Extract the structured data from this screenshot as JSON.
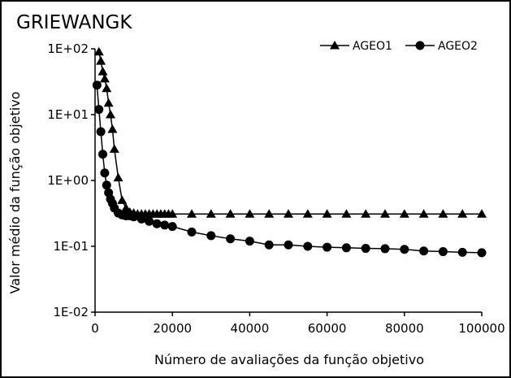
{
  "chart_data": {
    "type": "line",
    "title": "GRIEWANGK",
    "xlabel": "Número de avaliações da função objetivo",
    "ylabel": "Valor médio da função objetivo",
    "y_scale": "log",
    "xlim": [
      0,
      100000
    ],
    "ylim": [
      0.01,
      100
    ],
    "x_ticks": [
      0,
      20000,
      40000,
      60000,
      80000,
      100000
    ],
    "x_tick_labels": [
      "0",
      "20000",
      "40000",
      "60000",
      "80000",
      "100000"
    ],
    "y_ticks": [
      0.01,
      0.1,
      1,
      10,
      100
    ],
    "y_tick_labels": [
      "1E-02",
      "1E-01",
      "1E+00",
      "1E+01",
      "1E+02"
    ],
    "grid": false,
    "legend_position": "top-right",
    "series": [
      {
        "name": "AGEO1",
        "marker": "triangle",
        "color": "#000000",
        "x": [
          1000,
          1500,
          2000,
          2500,
          3000,
          3500,
          4000,
          4500,
          5000,
          6000,
          7000,
          8000,
          9000,
          10000,
          11000,
          12000,
          13000,
          14000,
          15000,
          16000,
          17000,
          18000,
          19000,
          20000,
          25000,
          30000,
          35000,
          40000,
          45000,
          50000,
          55000,
          60000,
          65000,
          70000,
          75000,
          80000,
          85000,
          90000,
          95000,
          100000
        ],
        "y": [
          90,
          65,
          45,
          35,
          25,
          15,
          10,
          6,
          3,
          1.1,
          0.5,
          0.38,
          0.33,
          0.32,
          0.31,
          0.31,
          0.31,
          0.31,
          0.31,
          0.31,
          0.31,
          0.31,
          0.31,
          0.31,
          0.31,
          0.31,
          0.31,
          0.31,
          0.31,
          0.31,
          0.31,
          0.31,
          0.31,
          0.31,
          0.31,
          0.31,
          0.31,
          0.31,
          0.31,
          0.31
        ]
      },
      {
        "name": "AGEO2",
        "marker": "circle",
        "color": "#000000",
        "x": [
          500,
          1000,
          1500,
          2000,
          2500,
          3000,
          3500,
          4000,
          4500,
          5000,
          6000,
          7000,
          8000,
          9000,
          10000,
          12000,
          14000,
          16000,
          18000,
          20000,
          25000,
          30000,
          35000,
          40000,
          45000,
          50000,
          55000,
          60000,
          65000,
          70000,
          75000,
          80000,
          85000,
          90000,
          95000,
          100000
        ],
        "y": [
          28,
          12,
          5.5,
          2.5,
          1.3,
          0.85,
          0.65,
          0.52,
          0.45,
          0.38,
          0.32,
          0.3,
          0.29,
          0.29,
          0.28,
          0.26,
          0.24,
          0.22,
          0.21,
          0.2,
          0.165,
          0.145,
          0.13,
          0.12,
          0.105,
          0.105,
          0.1,
          0.097,
          0.095,
          0.093,
          0.092,
          0.09,
          0.085,
          0.083,
          0.081,
          0.08
        ]
      }
    ]
  }
}
